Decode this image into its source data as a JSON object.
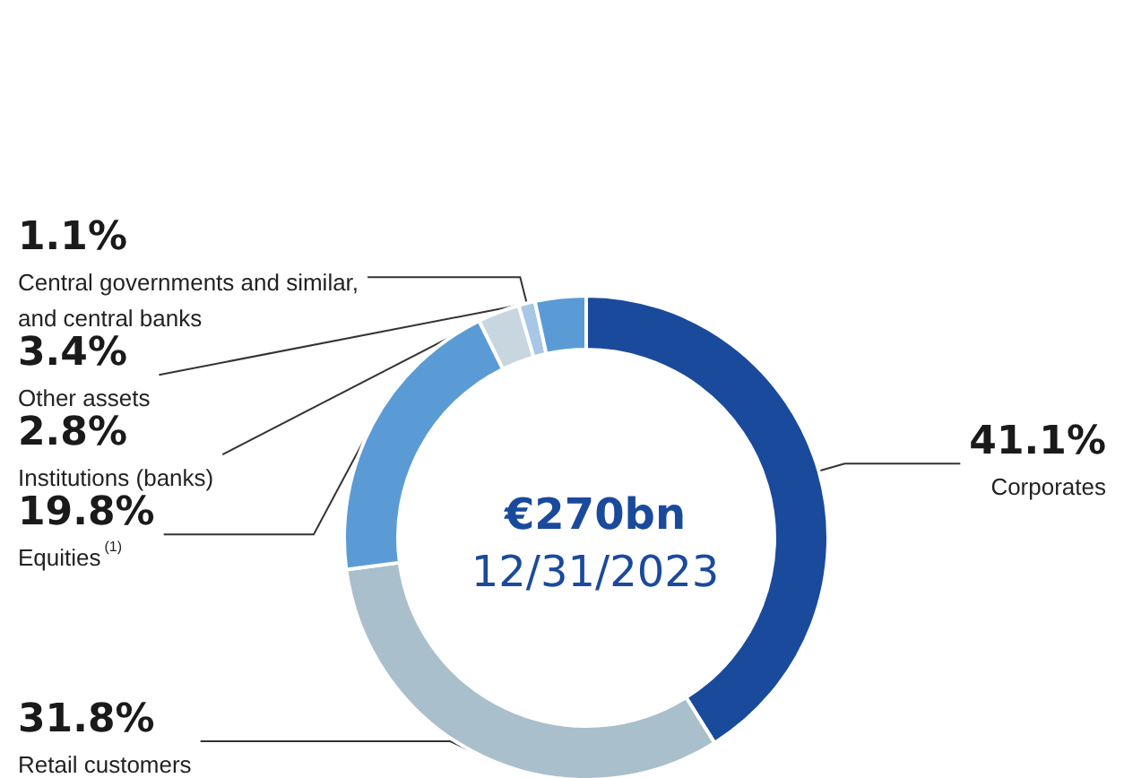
{
  "chart_data": {
    "type": "donut",
    "title": "€270bn",
    "subtitle": "12/31/2023",
    "categories": [
      "Corporates",
      "Retail customers",
      "Equities$^{(1)}$",
      "Institutions (banks)",
      "Central governments and similar,\nand central banks",
      "Other assets"
    ],
    "values": [
      41.1,
      31.8,
      19.8,
      2.8,
      1.1,
      3.4
    ],
    "value_labels": [
      "41.1%",
      "31.8%",
      "19.8%",
      "2.8%",
      "1.1%",
      "3.4%"
    ],
    "colors": [
      "#1a4a9c",
      "#a9bfcb",
      "#5b9bd5",
      "#c8d6df",
      "#a8c6e6",
      "#5b9bd5"
    ],
    "legend": false
  }
}
